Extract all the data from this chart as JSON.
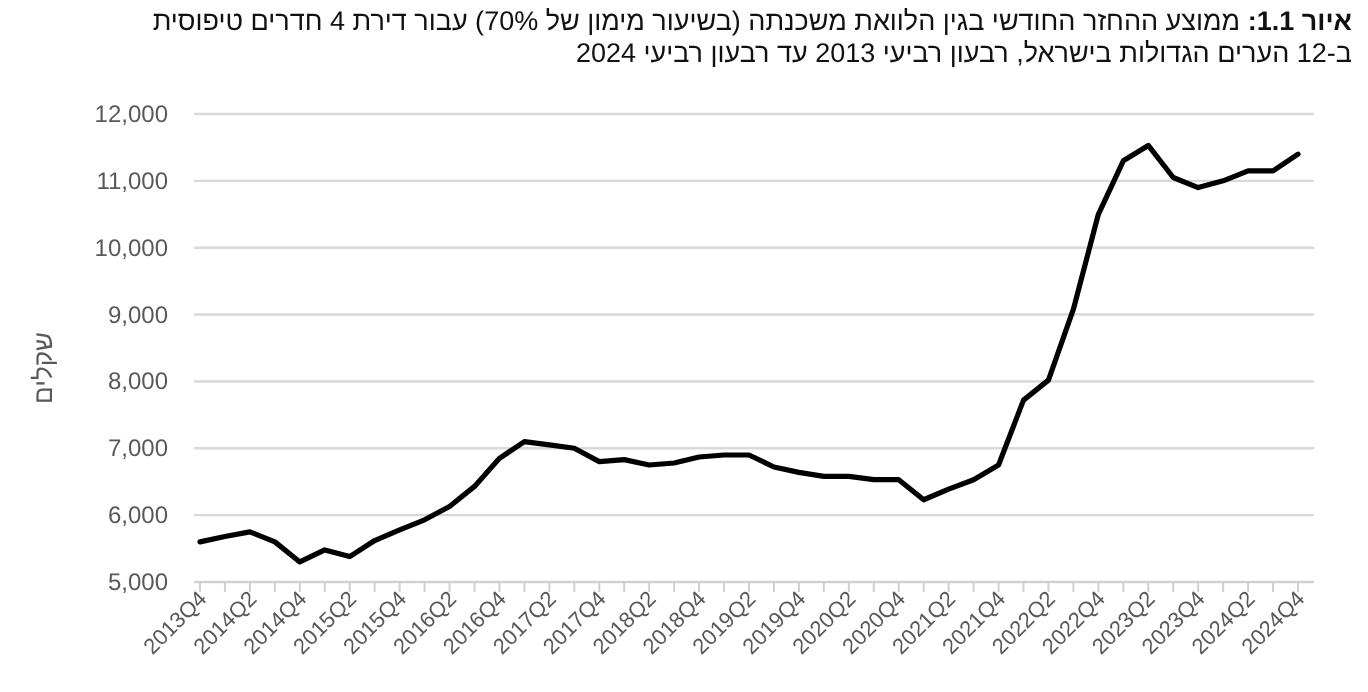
{
  "chart_data": {
    "type": "line",
    "title": "**איור 1.1:** ממוצע ההחזר החודשי בגין הלוואת משכנתה (בשיעור מימון של 70%) עבור דירת 4 חדרים טיפוסית ב-12 הערים הגדולות בישראל, רבעון רביעי 2013 עד רבעון רביעי 2024",
    "ylabel": "שקלים",
    "categories": [
      "2013Q4",
      null,
      "2014Q2",
      null,
      "2014Q4",
      null,
      "2015Q2",
      null,
      "2015Q4",
      null,
      "2016Q2",
      null,
      "2016Q4",
      null,
      "2017Q2",
      null,
      "2017Q4",
      null,
      "2018Q2",
      null,
      "2018Q4",
      null,
      "2019Q2",
      null,
      "2019Q4",
      null,
      "2020Q2",
      null,
      "2020Q4",
      null,
      "2021Q2",
      null,
      "2021Q4",
      null,
      "2022Q2",
      null,
      "2022Q4",
      null,
      "2023Q2",
      null,
      "2023Q4",
      null,
      "2024Q2",
      null,
      "2024Q4"
    ],
    "series": [
      {
        "color": "#000000",
        "values": [
          5600,
          5680,
          5750,
          5600,
          5300,
          5480,
          5380,
          5620,
          5780,
          5930,
          6130,
          6430,
          6850,
          7100,
          7050,
          7000,
          6800,
          6830,
          6750,
          6780,
          6870,
          6900,
          6900,
          6720,
          6640,
          6580,
          6580,
          6530,
          6530,
          6230,
          6390,
          6530,
          6750,
          7720,
          8020,
          9080,
          10500,
          11300,
          11530,
          11050,
          10900,
          11000,
          11150,
          11150,
          11400
        ]
      }
    ],
    "ylim": [
      5000,
      12000
    ],
    "yticks": [
      {
        "value": 5000,
        "label": "5,000"
      },
      {
        "value": 6000,
        "label": "6,000"
      },
      {
        "value": 7000,
        "label": "7,000"
      },
      {
        "value": 8000,
        "label": "8,000"
      },
      {
        "value": 9000,
        "label": "9,000"
      },
      {
        "value": 10000,
        "label": "10,000"
      },
      {
        "value": 11000,
        "label": "11,000"
      },
      {
        "value": 12000,
        "label": "12,000"
      }
    ],
    "grid": "y",
    "marker": "none",
    "line_style": "solid"
  }
}
